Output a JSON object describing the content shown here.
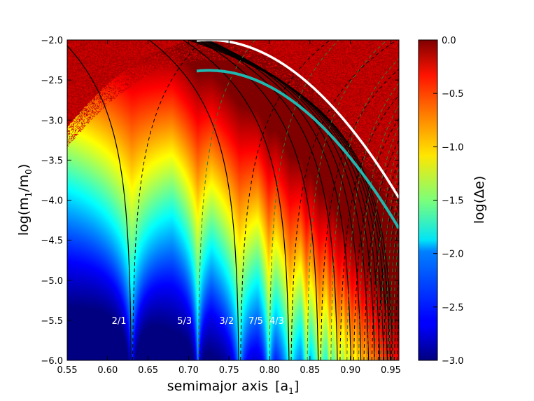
{
  "chart_data": {
    "type": "heatmap",
    "title": "",
    "xlabel_main": "semimajor axis",
    "xlabel_unit_base": "[a",
    "xlabel_unit_sub": "1",
    "xlabel_unit_close": "]",
    "ylabel_base": "log(m",
    "ylabel_sub1": "1",
    "ylabel_mid": "/m",
    "ylabel_sub2": "0",
    "ylabel_close": ")",
    "xlim": [
      0.55,
      0.96
    ],
    "ylim": [
      -6.0,
      -2.0
    ],
    "x_ticks": [
      0.55,
      0.6,
      0.65,
      0.7,
      0.75,
      0.8,
      0.85,
      0.9,
      0.95
    ],
    "x_tick_labels": [
      "0.55",
      "0.60",
      "0.65",
      "0.70",
      "0.75",
      "0.80",
      "0.85",
      "0.90",
      "0.95"
    ],
    "y_ticks": [
      -2.0,
      -2.5,
      -3.0,
      -3.5,
      -4.0,
      -4.5,
      -5.0,
      -5.5,
      -6.0
    ],
    "y_tick_labels": [
      "−2.0",
      "−2.5",
      "−3.0",
      "−3.5",
      "−4.0",
      "−4.5",
      "−5.0",
      "−5.5",
      "−6.0"
    ],
    "colorbar": {
      "label": "log(Δe)",
      "range": [
        -3.0,
        0.0
      ],
      "ticks": [
        0.0,
        -0.5,
        -1.0,
        -1.5,
        -2.0,
        -2.5,
        -3.0
      ],
      "tick_labels": [
        "0.0",
        "−0.5",
        "−1.0",
        "−1.5",
        "−2.0",
        "−2.5",
        "−3.0"
      ],
      "colormap": "jet"
    },
    "resonances": [
      {
        "label": "2/1",
        "a": 0.63
      },
      {
        "label": "5/3",
        "a": 0.711
      },
      {
        "label": "3/2",
        "a": 0.763
      },
      {
        "label": "7/5",
        "a": 0.799
      },
      {
        "label": "4/3",
        "a": 0.825
      }
    ],
    "resonance_label_y": -5.5,
    "colors": {
      "overlap_curve_white": "#ffffff",
      "overlap_curve_teal": "#1eb8b0",
      "separatrix": "#000000",
      "second_order": "#2e7d32"
    }
  }
}
